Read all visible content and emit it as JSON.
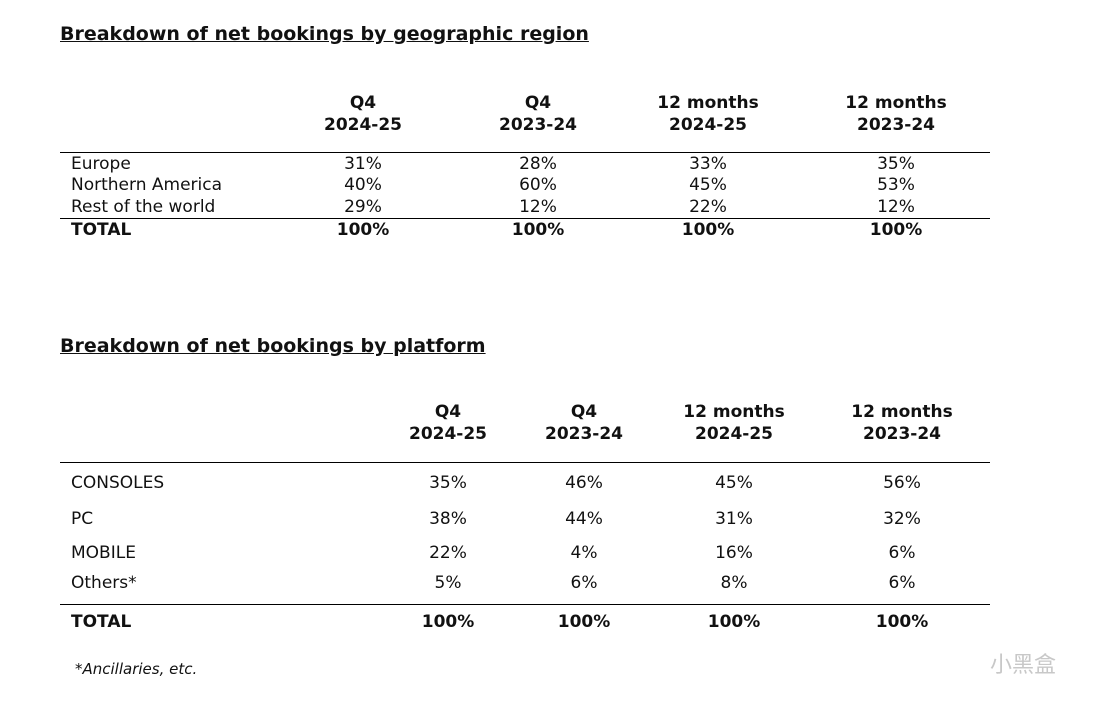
{
  "tables": [
    {
      "title": "Breakdown of net bookings by geographic region",
      "columns": [
        [
          "Q4",
          "2024-25"
        ],
        [
          "Q4",
          "2023-24"
        ],
        [
          "12 months",
          "2024-25"
        ],
        [
          "12 months",
          "2023-24"
        ]
      ],
      "rows": [
        [
          "Europe",
          "31%",
          "28%",
          "33%",
          "35%"
        ],
        [
          "Northern America",
          "40%",
          "60%",
          "45%",
          "53%"
        ],
        [
          "Rest of the world",
          "29%",
          "12%",
          "22%",
          "12%"
        ]
      ],
      "total": [
        "TOTAL",
        "100%",
        "100%",
        "100%",
        "100%"
      ]
    },
    {
      "title": "Breakdown of net bookings by platform",
      "columns": [
        [
          "Q4",
          "2024-25"
        ],
        [
          "Q4",
          "2023-24"
        ],
        [
          "12 months",
          "2024-25"
        ],
        [
          "12 months",
          "2023-24"
        ]
      ],
      "rows": [
        [
          "CONSOLES",
          "35%",
          "46%",
          "45%",
          "56%"
        ],
        [
          "PC",
          "38%",
          "44%",
          "31%",
          "32%"
        ],
        [
          "MOBILE",
          "22%",
          "4%",
          "16%",
          "6%"
        ],
        [
          "Others*",
          "5%",
          "6%",
          "8%",
          "6%"
        ]
      ],
      "total": [
        "TOTAL",
        "100%",
        "100%",
        "100%",
        "100%"
      ]
    }
  ],
  "footnote": "*Ancillaries, etc.",
  "watermark": "小黑盒"
}
